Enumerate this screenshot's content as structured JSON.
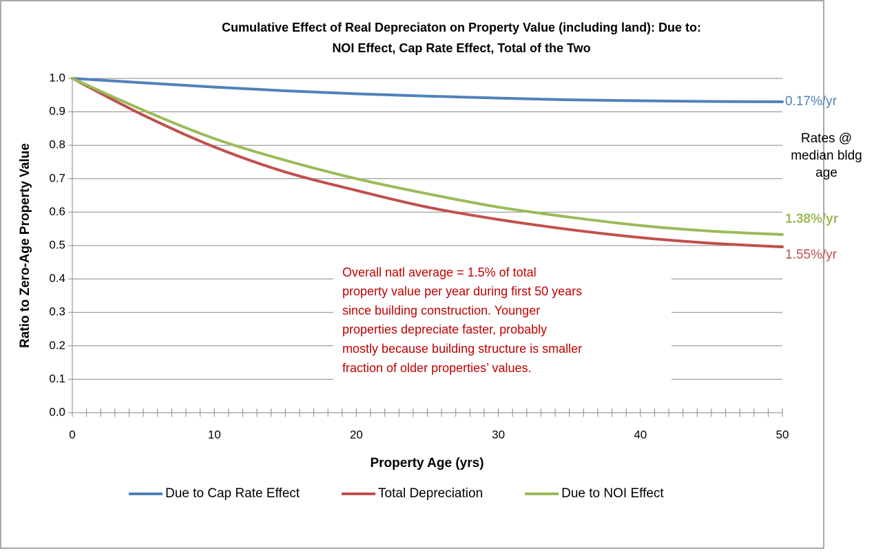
{
  "chart_data": {
    "type": "line",
    "title": [
      "Cumulative Effect of Real Depreciaton on Property Value (including land): Due to:",
      "NOI Effect, Cap Rate Effect, Total of the Two"
    ],
    "x_label": "Property Age (yrs)",
    "y_label": "Ratio to Zero-Age Property Value",
    "x": [
      0,
      5,
      10,
      15,
      20,
      25,
      30,
      35,
      40,
      45,
      50
    ],
    "series": [
      {
        "name": "Due to Cap Rate Effect",
        "color": "#4f81bd",
        "end_label": "0.17%/yr",
        "end_label_bold": false,
        "values": [
          1.0,
          0.987,
          0.974,
          0.963,
          0.954,
          0.947,
          0.941,
          0.936,
          0.933,
          0.931,
          0.93
        ]
      },
      {
        "name": "Total Depreciation",
        "color": "#c0504d",
        "end_label": "1.55%/yr",
        "end_label_bold": false,
        "values": [
          1.0,
          0.89,
          0.795,
          0.72,
          0.665,
          0.615,
          0.578,
          0.548,
          0.524,
          0.507,
          0.496
        ]
      },
      {
        "name": "Due to NOI Effect",
        "color": "#9bbb59",
        "end_label": "1.38%/yr",
        "end_label_bold": true,
        "values": [
          1.0,
          0.905,
          0.82,
          0.755,
          0.7,
          0.655,
          0.615,
          0.585,
          0.56,
          0.543,
          0.533
        ]
      }
    ],
    "rate_note": [
      "Rates @",
      "median bldg",
      "age"
    ],
    "annotation": [
      "Overall natl average = 1.5% of total",
      "property value per year during first 50 years",
      "since building construction. Younger",
      "properties depreciate faster, probably",
      "mostly because building structure is smaller",
      "fraction of older properties’ values."
    ],
    "annotation_color": "#c00000",
    "xlim": [
      0,
      50
    ],
    "xticks": [
      0,
      10,
      20,
      30,
      40,
      50
    ],
    "xminorticks": [
      1,
      2,
      3,
      4,
      5,
      6,
      7,
      8,
      9,
      11,
      12,
      13,
      14,
      15,
      16,
      17,
      18,
      19,
      21,
      22,
      23,
      24,
      25,
      26,
      27,
      28,
      29,
      31,
      32,
      33,
      34,
      35,
      36,
      37,
      38,
      39,
      41,
      42,
      43,
      44,
      45,
      46,
      47,
      48,
      49
    ],
    "ylim": [
      0,
      1
    ],
    "yticks": [
      {
        "value": 0,
        "label": "0.0"
      },
      0.1,
      0.2,
      0.3,
      0.4,
      0.5,
      0.6,
      0.7,
      0.8,
      0.9,
      {
        "value": 1,
        "label": "1.0"
      }
    ],
    "grid": true,
    "legend": "bottom"
  }
}
